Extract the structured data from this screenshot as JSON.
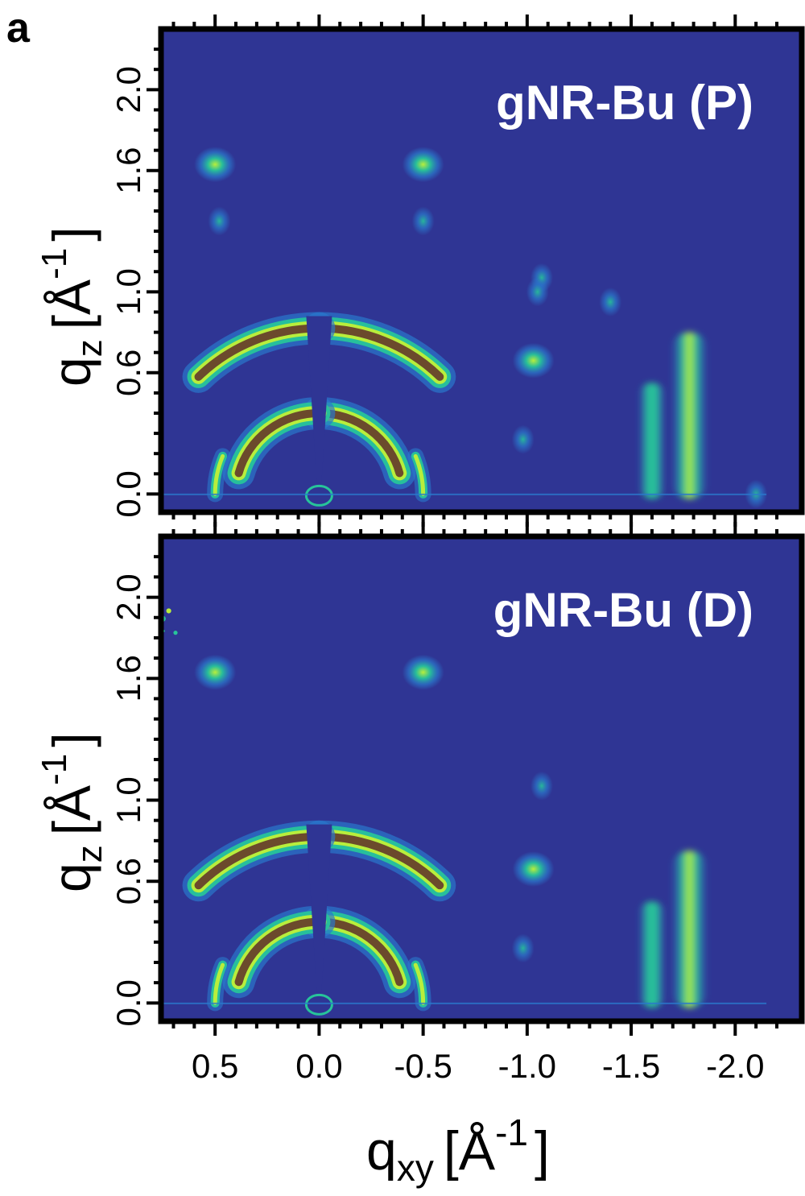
{
  "figure": {
    "panel_letter": "a",
    "x_axis_label": "q",
    "x_axis_label_sub": "xy",
    "x_axis_unit": "[Å",
    "x_axis_unit_exp": "-1",
    "x_axis_unit_close": "]",
    "y_axis_label": "q",
    "y_axis_label_sub": "z",
    "y_axis_unit": "[Å",
    "y_axis_unit_exp": "-1",
    "y_axis_unit_close": "]"
  },
  "colors": {
    "background": "#2f3594",
    "low": "#2a78cc",
    "mid": "#27c49a",
    "high": "#b8ee3c",
    "peak": "#6b4a2c",
    "peak_core": "#f4ecdc",
    "frame": "#000000",
    "label": "#ffffff"
  },
  "chart_data": [
    {
      "type": "heatmap",
      "title": "gNR-Bu (P)",
      "xlabel": "qxy [Å-1]",
      "ylabel": "qz [Å-1]",
      "x_reversed": true,
      "xlim": [
        0.76,
        -2.32
      ],
      "ylim": [
        -0.09,
        2.3
      ],
      "xticks": [
        0.5,
        0.0,
        -0.5,
        -1.0,
        -1.5,
        -2.0
      ],
      "xtick_labels": [
        "0.5",
        "0.0",
        "-0.5",
        "-1.0",
        "-1.5",
        "-2.0"
      ],
      "yticks": [
        0.0,
        0.6,
        1.0,
        1.6,
        2.0
      ],
      "ytick_labels": [
        "0.0",
        "0.6",
        "1.0",
        "1.6",
        "2.0"
      ],
      "features": [
        {
          "kind": "ring-arc",
          "q": 0.4,
          "from_deg": 15,
          "to_deg": 90,
          "intensity": "peak"
        },
        {
          "kind": "ring-arc",
          "q": 0.82,
          "from_deg": 45,
          "to_deg": 90,
          "intensity": "peak"
        },
        {
          "kind": "ring-arc",
          "q": 0.5,
          "from_deg": 0,
          "to_deg": 22,
          "intensity": "medium"
        },
        {
          "kind": "spot",
          "qxy": 0.5,
          "qz": 1.63,
          "intensity": "medium"
        },
        {
          "kind": "spot",
          "qxy": -0.5,
          "qz": 1.63,
          "intensity": "medium"
        },
        {
          "kind": "spot",
          "qxy": 0.48,
          "qz": 1.35,
          "intensity": "low"
        },
        {
          "kind": "spot",
          "qxy": -0.5,
          "qz": 1.35,
          "intensity": "low"
        },
        {
          "kind": "spot",
          "qxy": -1.07,
          "qz": 1.07,
          "intensity": "low"
        },
        {
          "kind": "spot",
          "qxy": -1.03,
          "qz": 0.66,
          "intensity": "medium"
        },
        {
          "kind": "spot",
          "qxy": -0.98,
          "qz": 0.27,
          "intensity": "low"
        },
        {
          "kind": "streak",
          "qxy": -1.6,
          "qz_from": 0.0,
          "qz_to": 0.55,
          "intensity": "low"
        },
        {
          "kind": "streak",
          "qxy": -1.78,
          "qz_from": 0.0,
          "qz_to": 0.8,
          "intensity": "high"
        },
        {
          "kind": "spot",
          "qxy": -1.05,
          "qz": 1.0,
          "intensity": "low"
        },
        {
          "kind": "spot",
          "qxy": -1.4,
          "qz": 0.95,
          "intensity": "low"
        },
        {
          "kind": "spot",
          "qxy": -2.1,
          "qz": 0.0,
          "intensity": "low"
        }
      ]
    },
    {
      "type": "heatmap",
      "title": "gNR-Bu (D)",
      "xlabel": "qxy [Å-1]",
      "ylabel": "qz [Å-1]",
      "x_reversed": true,
      "xlim": [
        0.76,
        -2.32
      ],
      "ylim": [
        -0.09,
        2.3
      ],
      "xticks": [
        0.5,
        0.0,
        -0.5,
        -1.0,
        -1.5,
        -2.0
      ],
      "xtick_labels": [
        "0.5",
        "0.0",
        "-0.5",
        "-1.0",
        "-1.5",
        "-2.0"
      ],
      "yticks": [
        0.0,
        0.6,
        1.0,
        1.6,
        2.0
      ],
      "ytick_labels": [
        "0.0",
        "0.6",
        "1.0",
        "1.6",
        "2.0"
      ],
      "features": [
        {
          "kind": "ring-arc",
          "q": 0.4,
          "from_deg": 15,
          "to_deg": 90,
          "intensity": "peak"
        },
        {
          "kind": "ring-arc",
          "q": 0.82,
          "from_deg": 45,
          "to_deg": 90,
          "intensity": "peak"
        },
        {
          "kind": "ring-arc",
          "q": 0.5,
          "from_deg": 0,
          "to_deg": 22,
          "intensity": "medium"
        },
        {
          "kind": "spot",
          "qxy": 0.5,
          "qz": 1.63,
          "intensity": "medium"
        },
        {
          "kind": "spot",
          "qxy": -0.5,
          "qz": 1.63,
          "intensity": "medium"
        },
        {
          "kind": "spot",
          "qxy": -1.07,
          "qz": 1.07,
          "intensity": "low"
        },
        {
          "kind": "spot",
          "qxy": -1.03,
          "qz": 0.66,
          "intensity": "medium"
        },
        {
          "kind": "spot",
          "qxy": -0.98,
          "qz": 0.27,
          "intensity": "low"
        },
        {
          "kind": "streak",
          "qxy": -1.6,
          "qz_from": 0.0,
          "qz_to": 0.5,
          "intensity": "low"
        },
        {
          "kind": "streak",
          "qxy": -1.78,
          "qz_from": 0.0,
          "qz_to": 0.75,
          "intensity": "high"
        },
        {
          "kind": "speckle-arc",
          "q_from": 1.9,
          "q_to": 2.2,
          "from_deg": 20,
          "to_deg": 70,
          "intensity": "high"
        }
      ]
    }
  ]
}
